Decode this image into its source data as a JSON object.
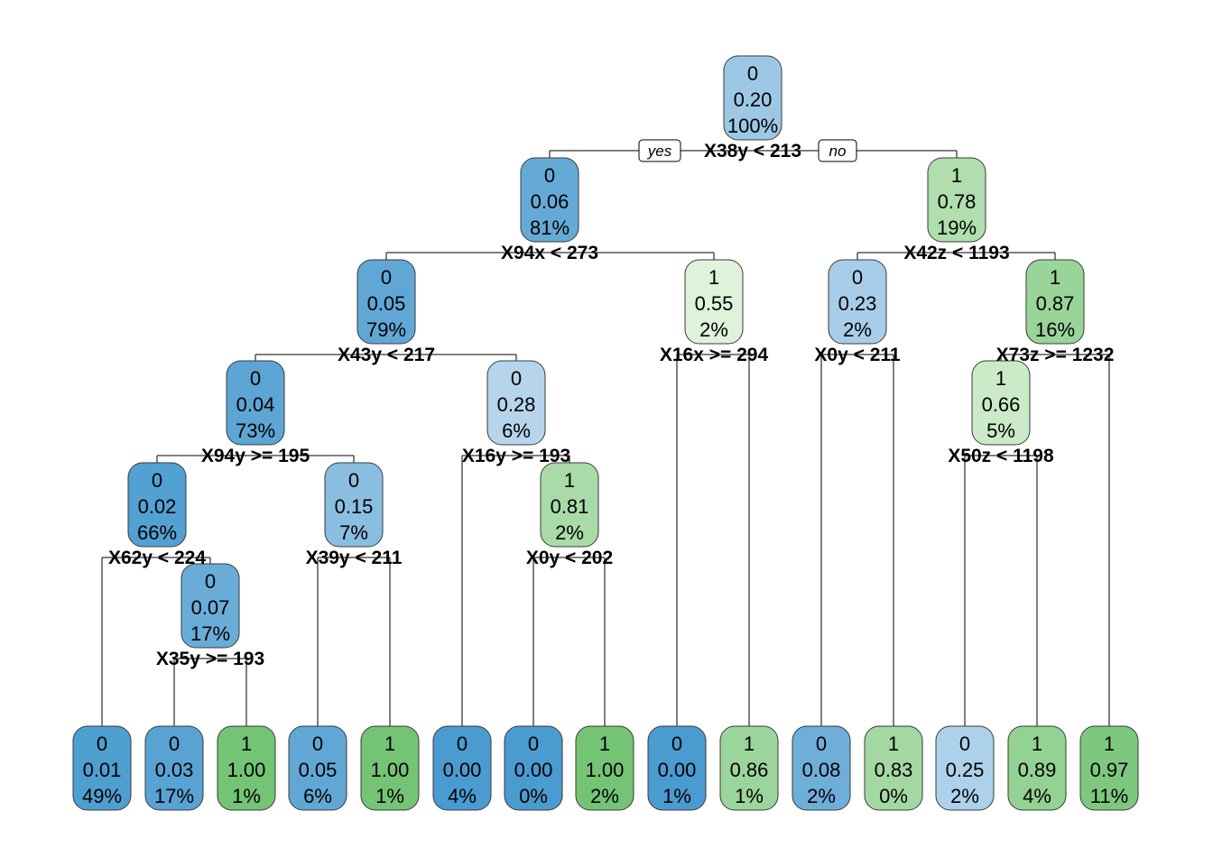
{
  "tree": {
    "yes_label": "yes",
    "no_label": "no",
    "nodes": [
      {
        "id": "n1",
        "cls": "0",
        "prob": "0.20",
        "pct": "100%",
        "split": "X38y < 213"
      },
      {
        "id": "n2",
        "cls": "0",
        "prob": "0.06",
        "pct": "81%",
        "split": "X94x < 273"
      },
      {
        "id": "n3",
        "cls": "1",
        "prob": "0.78",
        "pct": "19%",
        "split": "X42z < 1193"
      },
      {
        "id": "n4",
        "cls": "0",
        "prob": "0.05",
        "pct": "79%",
        "split": "X43y < 217"
      },
      {
        "id": "n5",
        "cls": "1",
        "prob": "0.55",
        "pct": "2%",
        "split": "X16x >= 294"
      },
      {
        "id": "n6",
        "cls": "0",
        "prob": "0.23",
        "pct": "2%",
        "split": "X0y < 211"
      },
      {
        "id": "n7",
        "cls": "1",
        "prob": "0.87",
        "pct": "16%",
        "split": "X73z >= 1232"
      },
      {
        "id": "n8",
        "cls": "0",
        "prob": "0.04",
        "pct": "73%",
        "split": "X94y >= 195"
      },
      {
        "id": "n9",
        "cls": "0",
        "prob": "0.28",
        "pct": "6%",
        "split": "X16y >= 193"
      },
      {
        "id": "n14",
        "cls": "1",
        "prob": "0.66",
        "pct": "5%",
        "split": "X50z < 1198"
      },
      {
        "id": "n16",
        "cls": "0",
        "prob": "0.02",
        "pct": "66%",
        "split": "X62y < 224"
      },
      {
        "id": "n17",
        "cls": "0",
        "prob": "0.15",
        "pct": "7%",
        "split": "X39y < 211"
      },
      {
        "id": "n19",
        "cls": "1",
        "prob": "0.81",
        "pct": "2%",
        "split": "X0y < 202"
      },
      {
        "id": "n33",
        "cls": "0",
        "prob": "0.07",
        "pct": "17%",
        "split": "X35y >= 193"
      },
      {
        "id": "l1",
        "cls": "0",
        "prob": "0.01",
        "pct": "49%"
      },
      {
        "id": "l2",
        "cls": "0",
        "prob": "0.03",
        "pct": "17%"
      },
      {
        "id": "l3",
        "cls": "1",
        "prob": "1.00",
        "pct": "1%"
      },
      {
        "id": "l4",
        "cls": "0",
        "prob": "0.05",
        "pct": "6%"
      },
      {
        "id": "l5",
        "cls": "1",
        "prob": "1.00",
        "pct": "1%"
      },
      {
        "id": "l6",
        "cls": "0",
        "prob": "0.00",
        "pct": "4%"
      },
      {
        "id": "l7",
        "cls": "0",
        "prob": "0.00",
        "pct": "0%"
      },
      {
        "id": "l8",
        "cls": "1",
        "prob": "1.00",
        "pct": "2%"
      },
      {
        "id": "l9",
        "cls": "0",
        "prob": "0.00",
        "pct": "1%"
      },
      {
        "id": "l10",
        "cls": "1",
        "prob": "0.86",
        "pct": "1%"
      },
      {
        "id": "l11",
        "cls": "0",
        "prob": "0.08",
        "pct": "2%"
      },
      {
        "id": "l12",
        "cls": "1",
        "prob": "0.83",
        "pct": "0%"
      },
      {
        "id": "l13",
        "cls": "0",
        "prob": "0.25",
        "pct": "2%"
      },
      {
        "id": "l14",
        "cls": "1",
        "prob": "0.89",
        "pct": "4%"
      },
      {
        "id": "l15",
        "cls": "1",
        "prob": "0.97",
        "pct": "11%"
      }
    ],
    "edges": [
      [
        "n1",
        "n2"
      ],
      [
        "n1",
        "n3"
      ],
      [
        "n2",
        "n4"
      ],
      [
        "n2",
        "n5"
      ],
      [
        "n3",
        "n6"
      ],
      [
        "n3",
        "n7"
      ],
      [
        "n4",
        "n8"
      ],
      [
        "n4",
        "n9"
      ],
      [
        "n5",
        "l9"
      ],
      [
        "n5",
        "l10"
      ],
      [
        "n6",
        "l11"
      ],
      [
        "n6",
        "l12"
      ],
      [
        "n7",
        "n14"
      ],
      [
        "n7",
        "l15"
      ],
      [
        "n8",
        "n16"
      ],
      [
        "n8",
        "n17"
      ],
      [
        "n9",
        "l6"
      ],
      [
        "n9",
        "n19"
      ],
      [
        "n14",
        "l13"
      ],
      [
        "n14",
        "l14"
      ],
      [
        "n16",
        "l1"
      ],
      [
        "n16",
        "n33"
      ],
      [
        "n17",
        "l4"
      ],
      [
        "n17",
        "l5"
      ],
      [
        "n19",
        "l7"
      ],
      [
        "n19",
        "l8"
      ],
      [
        "n33",
        "l2"
      ],
      [
        "n33",
        "l3"
      ]
    ],
    "colors": {
      "class0_light": "#deebf7",
      "class0_dark": "#4a9bcf",
      "class1_light": "#e5f5e0",
      "class1_dark": "#74c476"
    }
  }
}
